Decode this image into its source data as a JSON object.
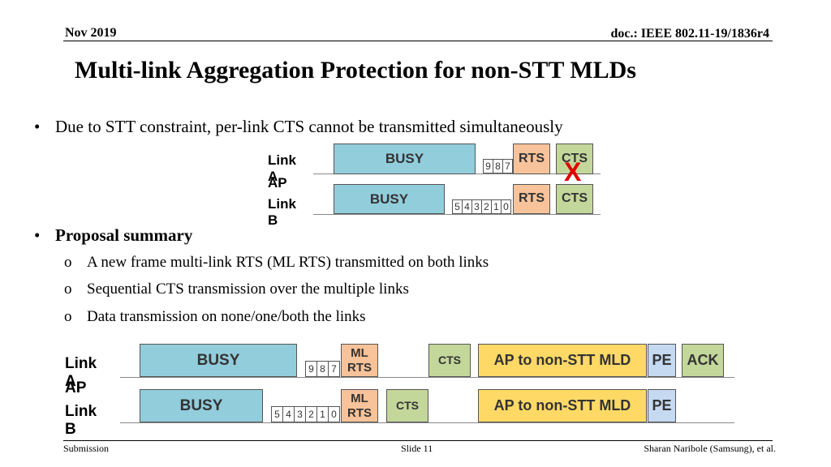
{
  "header": {
    "date": "Nov 2019",
    "doc": "doc.: IEEE 802.11-19/1836r4"
  },
  "title": "Multi-link Aggregation Protection for non-STT MLDs",
  "bullets": {
    "first": "Due to STT constraint, per-link CTS cannot be transmitted simultaneously",
    "second": "Proposal summary",
    "sub_items": [
      "A new frame multi-link RTS (ML RTS) transmitted on both links",
      "Sequential CTS transmission over the multiple links",
      "Data transmission on none/one/both the links"
    ]
  },
  "diagram1": {
    "labels": {
      "link_a": "Link A",
      "ap": "AP",
      "link_b": "Link B"
    },
    "link_a": {
      "busy": "BUSY",
      "backoff": [
        "9",
        "8",
        "7"
      ],
      "rts": "RTS",
      "cts": "CTS"
    },
    "link_b": {
      "busy": "BUSY",
      "backoff": [
        "5",
        "4",
        "3",
        "2",
        "1",
        "0"
      ],
      "rts": "RTS",
      "cts": "CTS"
    },
    "x_mark": "X",
    "x_color": "#e00000"
  },
  "diagram2": {
    "labels": {
      "link_a": "Link A",
      "ap": "AP",
      "link_b": "Link B"
    },
    "link_a": {
      "busy": "BUSY",
      "backoff": [
        "9",
        "8",
        "7"
      ],
      "ml_rts": "ML RTS",
      "cts": "CTS",
      "data": "AP to non-STT MLD",
      "pe": "PE",
      "ack": "ACK"
    },
    "link_b": {
      "busy": "BUSY",
      "backoff": [
        "5",
        "4",
        "3",
        "2",
        "1",
        "0"
      ],
      "ml_rts": "ML RTS",
      "cts": "CTS",
      "data": "AP to non-STT MLD",
      "pe": "PE"
    }
  },
  "colors": {
    "busy": "#92cddc",
    "rts": "#f8c39a",
    "cts": "#c4d79b",
    "data": "#ffd966",
    "pe": "#c5d9f1"
  },
  "footer": {
    "left": "Submission",
    "center": "Slide 11",
    "right": "Sharan Naribole (Samsung), et al."
  }
}
